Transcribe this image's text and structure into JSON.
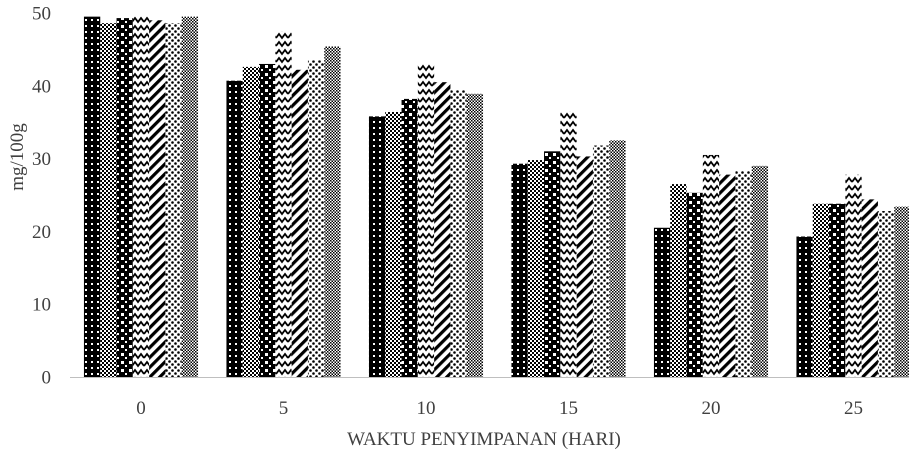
{
  "chart_data": {
    "type": "bar",
    "xlabel": "WAKTU PENYIMPANAN (HARI)",
    "ylabel": "mg/100g",
    "ylim": [
      0,
      50
    ],
    "yticks": [
      0,
      10,
      20,
      30,
      40,
      50
    ],
    "categories": [
      "0",
      "5",
      "10",
      "15",
      "20",
      "25"
    ],
    "grid": false,
    "legend": "none",
    "series": [
      {
        "values": [
          49.5,
          40.7,
          35.8,
          29.3,
          20.5,
          19.3
        ]
      },
      {
        "values": [
          48.6,
          42.6,
          36.4,
          29.8,
          26.5,
          23.8
        ]
      },
      {
        "values": [
          49.3,
          43.0,
          38.2,
          31.0,
          25.3,
          23.8
        ]
      },
      {
        "values": [
          49.5,
          47.5,
          43.0,
          36.5,
          30.5,
          27.8
        ]
      },
      {
        "values": [
          49.0,
          42.2,
          40.5,
          30.3,
          27.8,
          24.4
        ]
      },
      {
        "values": [
          48.6,
          43.5,
          39.4,
          31.8,
          28.3,
          22.8
        ]
      },
      {
        "values": [
          49.5,
          45.4,
          38.9,
          32.5,
          29.0,
          23.4
        ]
      }
    ],
    "series_fill_colors": [
      "#111111",
      "#555555",
      "#222222",
      "#444444",
      "#222222",
      "#333333",
      "#666666"
    ],
    "axis_color": "#bfbfbf",
    "text_color": "#404040"
  }
}
